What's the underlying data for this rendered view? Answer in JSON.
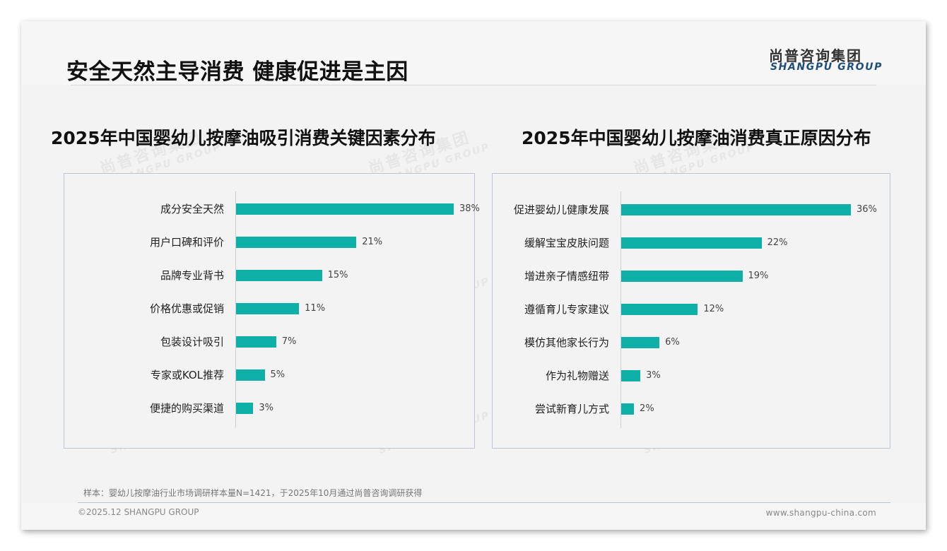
{
  "header": {
    "title": "安全天然主导消费 健康促进是主因",
    "logo_cn": "尚普咨询集团",
    "logo_en": "SHANGPU GROUP"
  },
  "watermark": {
    "cn": "尚普咨询集团",
    "en": "SHANGPU GROUP"
  },
  "colors": {
    "bar": "#0fb0a7",
    "title": "#111111",
    "logo_en": "#1f4e79"
  },
  "chart_data": [
    {
      "type": "bar",
      "orientation": "horizontal",
      "title": "2025年中国婴幼儿按摩油吸引消费关键因素分布",
      "categories": [
        "成分安全天然",
        "用户口碑和评价",
        "品牌专业背书",
        "价格优惠或促销",
        "包装设计吸引",
        "专家或KOL推荐",
        "便捷的购买渠道"
      ],
      "values": [
        38,
        21,
        15,
        11,
        7,
        5,
        3
      ],
      "value_labels": [
        "38%",
        "21%",
        "15%",
        "11%",
        "7%",
        "5%",
        "3%"
      ],
      "unit": "%",
      "xlabel": "",
      "ylabel": "",
      "grid": false,
      "legend": null
    },
    {
      "type": "bar",
      "orientation": "horizontal",
      "title": "2025年中国婴幼儿按摩油消费真正原因分布",
      "categories": [
        "促进婴幼儿健康发展",
        "缓解宝宝皮肤问题",
        "增进亲子情感纽带",
        "遵循育儿专家建议",
        "模仿其他家长行为",
        "作为礼物赠送",
        "尝试新育儿方式"
      ],
      "values": [
        36,
        22,
        19,
        12,
        6,
        3,
        2
      ],
      "value_labels": [
        "36%",
        "22%",
        "19%",
        "12%",
        "6%",
        "3%",
        "2%"
      ],
      "unit": "%",
      "xlabel": "",
      "ylabel": "",
      "grid": false,
      "legend": null
    }
  ],
  "footer": {
    "note": "样本：婴幼儿按摩油行业市场调研样本量N=1421，于2025年10月通过尚普咨询调研获得",
    "copyright": "©2025.12 SHANGPU GROUP",
    "website": "www.shangpu-china.com"
  }
}
